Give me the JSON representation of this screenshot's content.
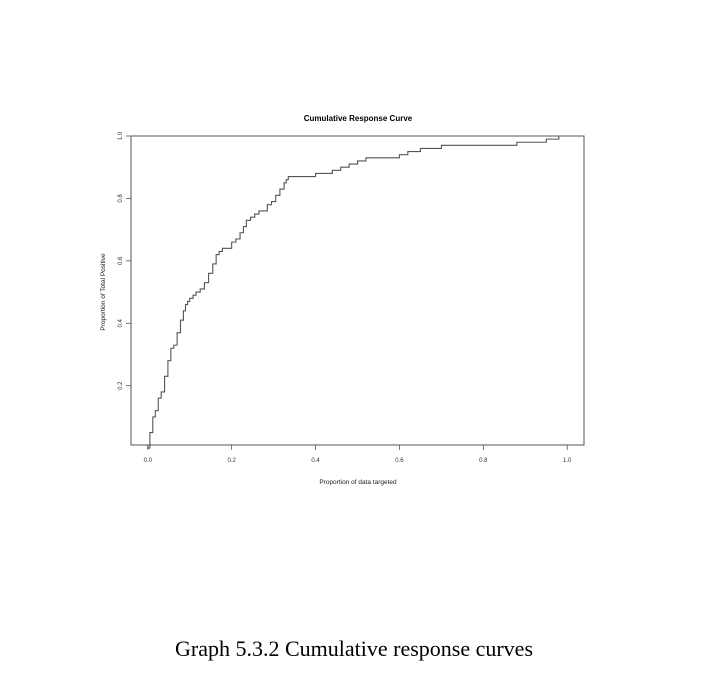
{
  "caption": "Graph 5.3.2 Cumulative response curves",
  "chart_data": {
    "type": "line",
    "title": "Cumulative Response Curve",
    "xlabel": "Proportion of data targeted",
    "ylabel": "Proportion of Total Positive",
    "xlim": [
      -0.04,
      1.04
    ],
    "ylim": [
      0.01,
      1.0
    ],
    "x_ticks": [
      "0.0",
      "0.2",
      "0.4",
      "0.6",
      "0.8",
      "1.0"
    ],
    "y_ticks": [
      "0.2",
      "0.4",
      "0.6",
      "0.8",
      "1.0"
    ],
    "grid": false,
    "line_color": "#555555",
    "series": [
      {
        "x": [
          0.0,
          0.005,
          0.012,
          0.018,
          0.025,
          0.032,
          0.04,
          0.048,
          0.055,
          0.062,
          0.07,
          0.078,
          0.085,
          0.09,
          0.095,
          0.1,
          0.108,
          0.115,
          0.125,
          0.135,
          0.145,
          0.155,
          0.163,
          0.17,
          0.178,
          0.185,
          0.2,
          0.21,
          0.22,
          0.228,
          0.235,
          0.245,
          0.255,
          0.265,
          0.275,
          0.285,
          0.295,
          0.305,
          0.315,
          0.325,
          0.33,
          0.335,
          0.34,
          0.36,
          0.38,
          0.4,
          0.42,
          0.44,
          0.46,
          0.48,
          0.5,
          0.52,
          0.55,
          0.58,
          0.6,
          0.62,
          0.65,
          0.7,
          0.75,
          0.8,
          0.85,
          0.88,
          0.9,
          0.93,
          0.95,
          0.97,
          0.98
        ],
        "y": [
          0.0,
          0.05,
          0.1,
          0.12,
          0.16,
          0.18,
          0.23,
          0.28,
          0.32,
          0.33,
          0.37,
          0.41,
          0.44,
          0.46,
          0.47,
          0.48,
          0.49,
          0.5,
          0.51,
          0.53,
          0.56,
          0.59,
          0.62,
          0.63,
          0.64,
          0.64,
          0.66,
          0.67,
          0.69,
          0.71,
          0.73,
          0.74,
          0.75,
          0.76,
          0.76,
          0.78,
          0.79,
          0.81,
          0.83,
          0.85,
          0.86,
          0.87,
          0.87,
          0.87,
          0.87,
          0.88,
          0.88,
          0.89,
          0.9,
          0.91,
          0.92,
          0.93,
          0.93,
          0.93,
          0.94,
          0.95,
          0.96,
          0.97,
          0.97,
          0.97,
          0.97,
          0.98,
          0.98,
          0.98,
          0.99,
          0.99,
          1.0
        ]
      }
    ]
  }
}
